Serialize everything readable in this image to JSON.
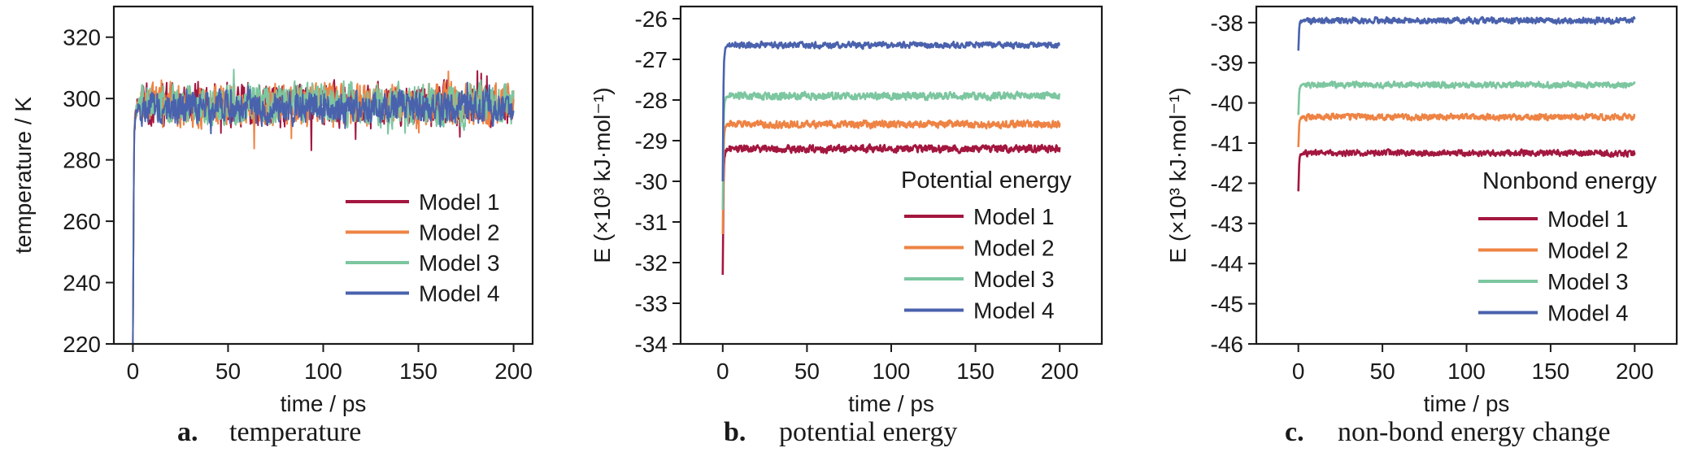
{
  "chart_data": [
    {
      "panel": "a",
      "type": "line",
      "title": "",
      "xlabel": "time / ps",
      "ylabel": "temperature / K",
      "xlim": [
        -10,
        210
      ],
      "ylim": [
        220,
        330
      ],
      "xticks": [
        0,
        50,
        100,
        150,
        200
      ],
      "yticks": [
        220,
        240,
        260,
        280,
        300,
        320
      ],
      "legend_title": "",
      "legend_position": "lower-right",
      "caption_letter": "a.",
      "caption": "temperature",
      "series": [
        {
          "name": "Model 1",
          "color": "#a3173f",
          "start": 220,
          "plateau": 298,
          "noise": 9,
          "spikes": 1.0
        },
        {
          "name": "Model 2",
          "color": "#ee8344",
          "start": 220,
          "plateau": 298,
          "noise": 9,
          "spikes": 1.0
        },
        {
          "name": "Model 3",
          "color": "#7cc6a0",
          "start": 220,
          "plateau": 298,
          "noise": 9,
          "spikes": 1.0
        },
        {
          "name": "Model 4",
          "color": "#4a62ad",
          "start": 220,
          "plateau": 297,
          "noise": 7,
          "spikes": 0.8
        }
      ]
    },
    {
      "panel": "b",
      "type": "line",
      "title": "",
      "xlabel": "time / ps",
      "ylabel": "E (×10³ kJ·mol⁻¹)",
      "xlim": [
        -25,
        225
      ],
      "ylim": [
        -34,
        -25.7
      ],
      "xticks": [
        0,
        50,
        100,
        150,
        200
      ],
      "yticks": [
        -34,
        -33,
        -32,
        -31,
        -30,
        -29,
        -28,
        -27,
        -26
      ],
      "legend_title": "Potential energy",
      "legend_position": "lower-right",
      "caption_letter": "b.",
      "caption": "potential energy",
      "series": [
        {
          "name": "Model 1",
          "color": "#a3173f",
          "start": -32.3,
          "plateau": -29.2,
          "noise": 0.12
        },
        {
          "name": "Model 2",
          "color": "#ee8344",
          "start": -31.3,
          "plateau": -28.6,
          "noise": 0.12
        },
        {
          "name": "Model 3",
          "color": "#7cc6a0",
          "start": -30.7,
          "plateau": -27.9,
          "noise": 0.12
        },
        {
          "name": "Model 4",
          "color": "#4a62ad",
          "start": -30.0,
          "plateau": -26.65,
          "noise": 0.1
        }
      ]
    },
    {
      "panel": "c",
      "type": "line",
      "title": "",
      "xlabel": "time / ps",
      "ylabel": "E (×10³ kJ·mol⁻¹)",
      "xlim": [
        -25,
        225
      ],
      "ylim": [
        -46,
        -37.6
      ],
      "xticks": [
        0,
        50,
        100,
        150,
        200
      ],
      "yticks": [
        -46,
        -45,
        -44,
        -43,
        -42,
        -41,
        -40,
        -39,
        -38
      ],
      "legend_title": "Nonbond energy",
      "legend_position": "lower-right",
      "caption_letter": "c.",
      "caption": "non-bond energy change",
      "series": [
        {
          "name": "Model 1",
          "color": "#a3173f",
          "start": -42.2,
          "plateau": -41.25,
          "noise": 0.1
        },
        {
          "name": "Model 2",
          "color": "#ee8344",
          "start": -41.1,
          "plateau": -40.35,
          "noise": 0.1
        },
        {
          "name": "Model 3",
          "color": "#7cc6a0",
          "start": -40.3,
          "plateau": -39.55,
          "noise": 0.1
        },
        {
          "name": "Model 4",
          "color": "#4a62ad",
          "start": -38.7,
          "plateau": -37.95,
          "noise": 0.1
        }
      ]
    }
  ]
}
